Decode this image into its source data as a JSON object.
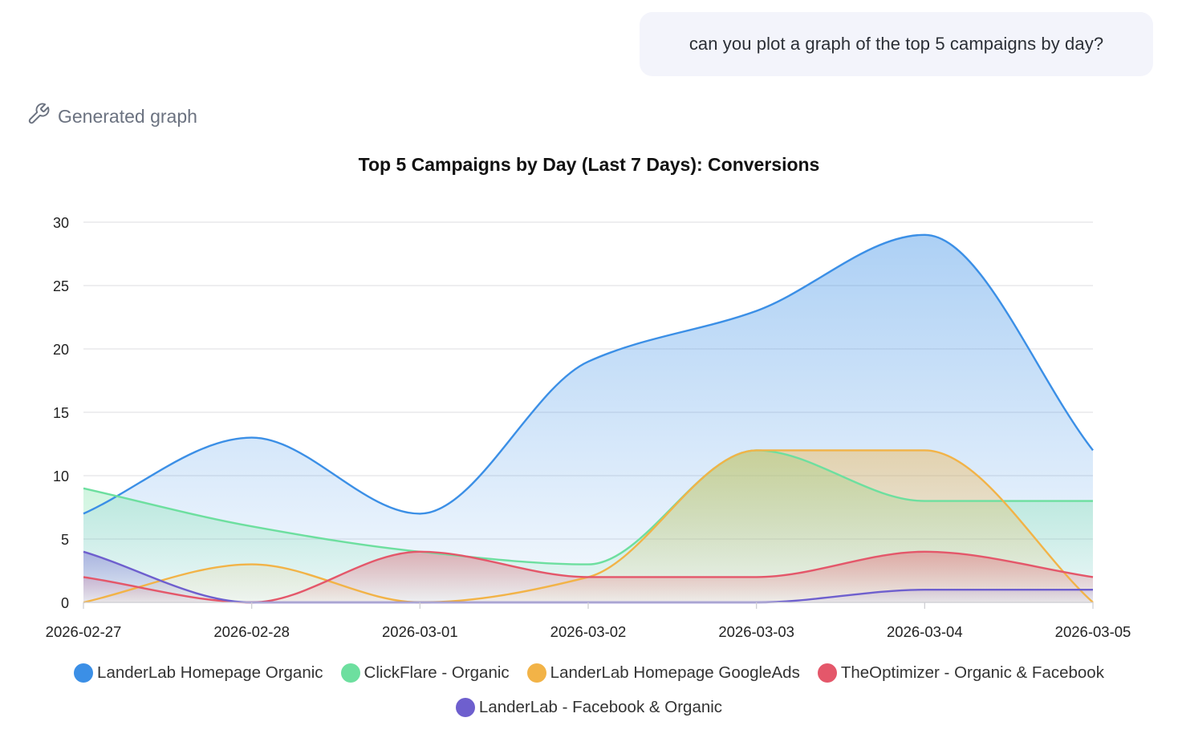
{
  "chat": {
    "user_message": "can you plot a graph of the top 5 campaigns by day?"
  },
  "tool_call": {
    "icon": "wrench-icon",
    "label": "Generated graph"
  },
  "chart_data": {
    "type": "area",
    "title": "Top 5 Campaigns by Day (Last 7 Days): Conversions",
    "xlabel": "",
    "ylabel": "",
    "categories": [
      "2026-02-27",
      "2026-02-28",
      "2026-03-01",
      "2026-03-02",
      "2026-03-03",
      "2026-03-04",
      "2026-03-05"
    ],
    "ylim": [
      0,
      30
    ],
    "yticks": [
      0,
      5,
      10,
      15,
      20,
      25,
      30
    ],
    "grid": true,
    "smooth": true,
    "legend_position": "bottom",
    "series": [
      {
        "name": "LanderLab Homepage Organic",
        "color": "#3b8fe6",
        "values": [
          7,
          13,
          7,
          19,
          23,
          29,
          12
        ]
      },
      {
        "name": "ClickFlare - Organic",
        "color": "#6ddf9f",
        "values": [
          9,
          6,
          4,
          3,
          12,
          8,
          8
        ]
      },
      {
        "name": "LanderLab Homepage GoogleAds",
        "color": "#f2b347",
        "values": [
          0,
          3,
          0,
          2,
          12,
          12,
          0
        ]
      },
      {
        "name": "TheOptimizer - Organic & Facebook",
        "color": "#e4576a",
        "values": [
          2,
          0,
          4,
          2,
          2,
          4,
          2
        ]
      },
      {
        "name": "LanderLab - Facebook & Organic",
        "color": "#6e5fce",
        "values": [
          4,
          0,
          0,
          0,
          0,
          1,
          1
        ]
      }
    ]
  }
}
